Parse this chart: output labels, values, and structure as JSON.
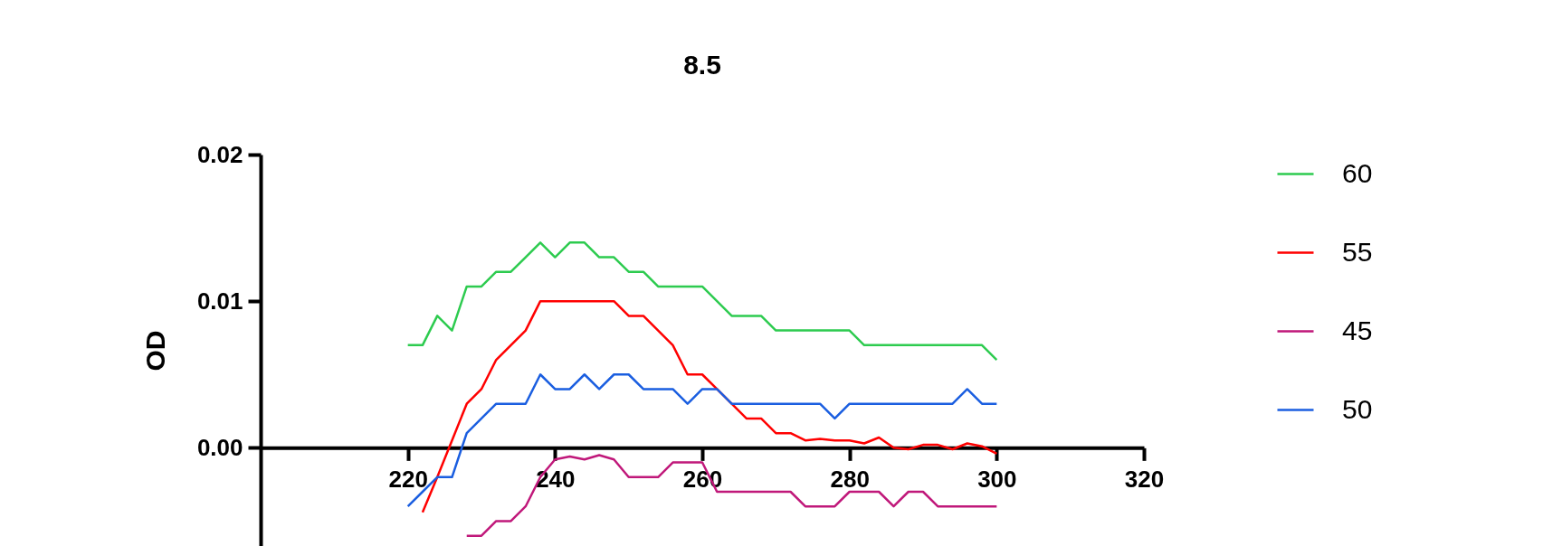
{
  "chart_data": {
    "type": "line",
    "title": "8.5",
    "ylabel": "OD",
    "x": [
      220,
      222,
      224,
      226,
      228,
      230,
      232,
      234,
      236,
      238,
      240,
      242,
      244,
      246,
      248,
      250,
      252,
      254,
      256,
      258,
      260,
      262,
      264,
      266,
      268,
      270,
      272,
      274,
      276,
      278,
      280,
      282,
      284,
      286,
      288,
      290,
      292,
      294,
      296,
      298,
      300
    ],
    "series": [
      {
        "name": "60",
        "color": "#2dcb4f",
        "values": [
          0.007,
          0.007,
          0.009,
          0.008,
          0.011,
          0.011,
          0.012,
          0.012,
          0.013,
          0.014,
          0.013,
          0.014,
          0.014,
          0.013,
          0.013,
          0.012,
          0.012,
          0.011,
          0.011,
          0.011,
          0.011,
          0.01,
          0.009,
          0.009,
          0.009,
          0.008,
          0.008,
          0.008,
          0.008,
          0.008,
          0.008,
          0.007,
          0.007,
          0.007,
          0.007,
          0.007,
          0.007,
          0.007,
          0.007,
          0.007,
          0.006
        ]
      },
      {
        "name": "55",
        "color": "#ff0000",
        "values": [
          null,
          -0.0044,
          -0.002,
          0.0005,
          0.003,
          0.004,
          0.006,
          0.007,
          0.008,
          0.01,
          0.01,
          0.01,
          0.01,
          0.01,
          0.01,
          0.009,
          0.009,
          0.008,
          0.007,
          0.005,
          0.005,
          0.004,
          0.003,
          0.002,
          0.002,
          0.001,
          0.001,
          0.0005,
          0.0006,
          0.0005,
          0.0005,
          0.0003,
          0.0007,
          0.0,
          -0.0001,
          0.0002,
          0.0002,
          -0.0001,
          0.0003,
          0.0001,
          -0.0004
        ]
      },
      {
        "name": "45",
        "color": "#c0187a",
        "values": [
          null,
          null,
          null,
          null,
          -0.006,
          -0.006,
          -0.005,
          -0.005,
          -0.004,
          -0.002,
          -0.0008,
          -0.0006,
          -0.0008,
          -0.0005,
          -0.0008,
          -0.002,
          -0.002,
          -0.002,
          -0.001,
          -0.001,
          -0.001,
          -0.003,
          -0.003,
          -0.003,
          -0.003,
          -0.003,
          -0.003,
          -0.004,
          -0.004,
          -0.004,
          -0.003,
          -0.003,
          -0.003,
          -0.004,
          -0.003,
          -0.003,
          -0.004,
          -0.004,
          -0.004,
          -0.004,
          -0.004
        ]
      },
      {
        "name": "50",
        "color": "#1a5ee0",
        "values": [
          -0.004,
          -0.003,
          -0.002,
          -0.002,
          0.001,
          0.002,
          0.003,
          0.003,
          0.003,
          0.005,
          0.004,
          0.004,
          0.005,
          0.004,
          0.005,
          0.005,
          0.004,
          0.004,
          0.004,
          0.003,
          0.004,
          0.004,
          0.003,
          0.003,
          0.003,
          0.003,
          0.003,
          0.003,
          0.003,
          0.002,
          0.003,
          0.003,
          0.003,
          0.003,
          0.003,
          0.003,
          0.003,
          0.003,
          0.004,
          0.003,
          0.003
        ]
      }
    ],
    "xlim": [
      200,
      320
    ],
    "xticks": [
      220,
      240,
      260,
      280,
      300,
      320
    ],
    "ylim": [
      -0.0067,
      0.02
    ],
    "yticks": [
      {
        "value": 0,
        "label": "0.00"
      },
      0.01,
      0.02
    ],
    "grid": false,
    "legend": "right",
    "marker": "none",
    "line_style": "solid"
  }
}
